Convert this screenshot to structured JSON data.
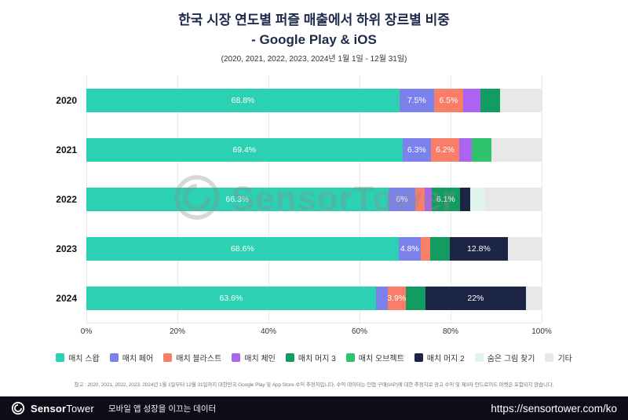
{
  "header": {
    "title_line1": "한국 시장 연도별 퍼즐 매출에서 하위 장르별 비중",
    "title_line2": "- Google Play & iOS",
    "subtitle": "(2020, 2021, 2022, 2023, 2024년 1월 1일 - 12월 31일)"
  },
  "watermark": {
    "text": "SensorTower"
  },
  "chart_data": {
    "type": "bar",
    "orientation": "horizontal",
    "stacked": true,
    "unit": "%",
    "xlim": [
      0,
      100
    ],
    "x_ticks": [
      "0%",
      "20%",
      "40%",
      "60%",
      "80%",
      "100%"
    ],
    "grid": "vertical",
    "legend_position": "bottom",
    "legend": [
      {
        "name": "매치 스왑",
        "color": "#2bd1b2"
      },
      {
        "name": "매치 페어",
        "color": "#7b82ec"
      },
      {
        "name": "매치 블라스트",
        "color": "#f87e68"
      },
      {
        "name": "매치 체인",
        "color": "#ab64f0"
      },
      {
        "name": "매치 머지 3",
        "color": "#129c62"
      },
      {
        "name": "매치 오브젝트",
        "color": "#2fc46b"
      },
      {
        "name": "매치 머지 2",
        "color": "#1d2546"
      },
      {
        "name": "숨은 그림 찾기",
        "color": "#dff4ea"
      },
      {
        "name": "기타",
        "color": "#e8e8e8"
      }
    ],
    "rows": [
      {
        "year": "2020",
        "segments": [
          {
            "series": "매치 스왑",
            "value": 68.8,
            "label": "68.8%"
          },
          {
            "series": "매치 페어",
            "value": 7.5,
            "label": "7.5%"
          },
          {
            "series": "매치 블라스트",
            "value": 6.5,
            "label": "6.5%"
          },
          {
            "series": "매치 체인",
            "value": 3.8,
            "label": ""
          },
          {
            "series": "매치 머지 3",
            "value": 4.2,
            "label": ""
          },
          {
            "series": "기타",
            "value": 9.2,
            "label": ""
          }
        ]
      },
      {
        "year": "2021",
        "segments": [
          {
            "series": "매치 스왑",
            "value": 69.4,
            "label": "69.4%"
          },
          {
            "series": "매치 페어",
            "value": 6.3,
            "label": "6.3%"
          },
          {
            "series": "매치 블라스트",
            "value": 6.2,
            "label": "6.2%"
          },
          {
            "series": "매치 체인",
            "value": 2.7,
            "label": ""
          },
          {
            "series": "매치 오브젝트",
            "value": 4.4,
            "label": ""
          },
          {
            "series": "기타",
            "value": 11.0,
            "label": ""
          }
        ]
      },
      {
        "year": "2022",
        "segments": [
          {
            "series": "매치 스왑",
            "value": 66.3,
            "label": "66.3%"
          },
          {
            "series": "매치 페어",
            "value": 6.0,
            "label": "6%"
          },
          {
            "series": "매치 블라스트",
            "value": 2.0,
            "label": ""
          },
          {
            "series": "매치 체인",
            "value": 1.6,
            "label": ""
          },
          {
            "series": "매치 머지 3",
            "value": 6.1,
            "label": "6.1%"
          },
          {
            "series": "매치 머지 2",
            "value": 2.4,
            "label": ""
          },
          {
            "series": "숨은 그림 찾기",
            "value": 3.2,
            "label": ""
          },
          {
            "series": "기타",
            "value": 12.4,
            "label": ""
          }
        ]
      },
      {
        "year": "2023",
        "segments": [
          {
            "series": "매치 스왑",
            "value": 68.6,
            "label": "68.6%"
          },
          {
            "series": "매치 페어",
            "value": 4.8,
            "label": "4.8%"
          },
          {
            "series": "매치 블라스트",
            "value": 2.2,
            "label": ""
          },
          {
            "series": "매치 머지 3",
            "value": 4.2,
            "label": ""
          },
          {
            "series": "매치 머지 2",
            "value": 12.8,
            "label": "12.8%"
          },
          {
            "series": "기타",
            "value": 7.4,
            "label": ""
          }
        ]
      },
      {
        "year": "2024",
        "segments": [
          {
            "series": "매치 스왑",
            "value": 63.6,
            "label": "63.6%"
          },
          {
            "series": "매치 페어",
            "value": 2.6,
            "label": ""
          },
          {
            "series": "매치 블라스트",
            "value": 3.9,
            "label": "3.9%"
          },
          {
            "series": "매치 머지 3",
            "value": 4.4,
            "label": ""
          },
          {
            "series": "매치 머지 2",
            "value": 22.0,
            "label": "22%"
          },
          {
            "series": "기타",
            "value": 3.5,
            "label": ""
          }
        ]
      }
    ]
  },
  "note": {
    "text": "참고 : 2020, 2021, 2022, 2023, 2024년 1월 1일부터 12월 31일까지 대한민국 Google Play 및 App Store 수익 추정치입니다. 수익 데이터는 인앱 구매(IAP)에 대한 추정치로 광고 수익 및 제3자 안드로이드 마켓은 포함되지 않습니다."
  },
  "footer": {
    "brand_part1": "Sensor",
    "brand_part2": "Tower",
    "tagline": "모바일 앱 성장을 이끄는 데이터",
    "url": "https://sensortower.com/ko"
  }
}
